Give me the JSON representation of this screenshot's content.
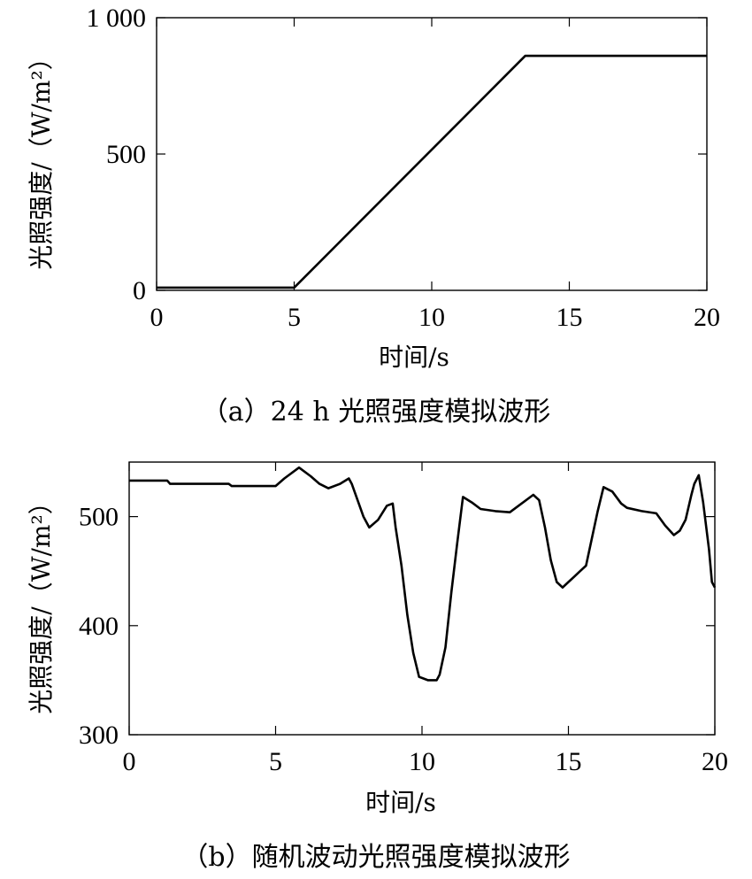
{
  "chart_data": [
    {
      "type": "line",
      "caption": "（a）24 h 光照强度模拟波形",
      "xlabel": "时间/s",
      "ylabel": "光照强度/（W/m²）",
      "xlim": [
        0,
        20
      ],
      "ylim": [
        0,
        1000
      ],
      "xticks": [
        0,
        5,
        10,
        15,
        20
      ],
      "yticks": [
        0,
        500,
        1000
      ],
      "xtick_labels": [
        "0",
        "5",
        "10",
        "15",
        "20"
      ],
      "ytick_labels": [
        "0",
        "500",
        "1 000"
      ],
      "grid": false,
      "color": "#000000",
      "series": [
        {
          "x": [
            0,
            5,
            13.4,
            20
          ],
          "y": [
            10,
            10,
            860,
            860
          ]
        }
      ]
    },
    {
      "type": "line",
      "caption": "（b）随机波动光照强度模拟波形",
      "xlabel": "时间/s",
      "ylabel": "光照强度/（W/m²）",
      "xlim": [
        0,
        20
      ],
      "ylim": [
        300,
        550
      ],
      "xticks": [
        0,
        5,
        10,
        15,
        20
      ],
      "yticks": [
        300,
        400,
        500
      ],
      "xtick_labels": [
        "0",
        "5",
        "10",
        "15",
        "20"
      ],
      "ytick_labels": [
        "300",
        "400",
        "500"
      ],
      "grid": false,
      "color": "#000000",
      "series": [
        {
          "x": [
            0,
            1.3,
            1.4,
            3.4,
            3.5,
            5.0,
            5.3,
            5.8,
            6.2,
            6.5,
            6.8,
            7.2,
            7.5,
            7.6,
            7.8,
            8.0,
            8.2,
            8.5,
            8.8,
            9.0,
            9.1,
            9.3,
            9.5,
            9.7,
            9.9,
            10.0,
            10.2,
            10.5,
            10.6,
            10.8,
            11.0,
            11.2,
            11.4,
            11.7,
            12.0,
            12.5,
            13.0,
            13.3,
            13.8,
            14.0,
            14.2,
            14.4,
            14.6,
            14.8,
            15.0,
            15.2,
            15.4,
            15.6,
            15.8,
            16.0,
            16.2,
            16.5,
            16.8,
            17.0,
            17.5,
            18.0,
            18.3,
            18.6,
            18.8,
            19.0,
            19.2,
            19.3,
            19.45,
            19.6,
            19.8,
            19.9,
            20.0
          ],
          "y": [
            533,
            533,
            530,
            530,
            528,
            528,
            535,
            545,
            537,
            530,
            526,
            530,
            535,
            530,
            515,
            500,
            490,
            497,
            510,
            512,
            490,
            455,
            410,
            375,
            353,
            352,
            350,
            350,
            355,
            380,
            430,
            475,
            518,
            513,
            507,
            505,
            504,
            510,
            520,
            515,
            490,
            460,
            440,
            435,
            440,
            445,
            450,
            455,
            480,
            505,
            527,
            523,
            512,
            508,
            505,
            503,
            492,
            483,
            487,
            497,
            520,
            530,
            538,
            513,
            470,
            440,
            435
          ]
        }
      ]
    }
  ]
}
